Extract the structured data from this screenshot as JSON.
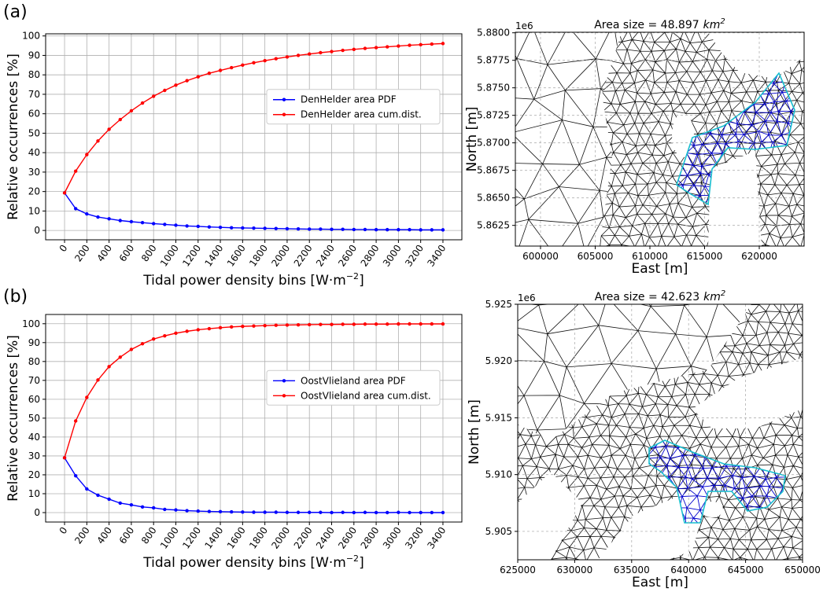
{
  "chart_data": [
    {
      "type": "line",
      "panel_label": "(a)",
      "ylabel": "Relative occurrences [%]",
      "xlabel": {
        "text": "Tidal power density bins [W·m",
        "sup": "−2",
        "end": "]"
      },
      "x": [
        0,
        100,
        200,
        300,
        400,
        500,
        600,
        700,
        800,
        900,
        1000,
        1100,
        1200,
        1300,
        1400,
        1500,
        1600,
        1700,
        1800,
        1900,
        2000,
        2100,
        2200,
        2300,
        2400,
        2500,
        2600,
        2700,
        2800,
        2900,
        3000,
        3100,
        3200,
        3300,
        3400
      ],
      "series": [
        {
          "name": "DenHelder area PDF",
          "color": "#0000ff",
          "values": [
            19.3,
            11.2,
            8.5,
            6.9,
            6.0,
            5.1,
            4.5,
            4.0,
            3.5,
            3.1,
            2.7,
            2.3,
            2.1,
            1.8,
            1.6,
            1.4,
            1.3,
            1.2,
            1.1,
            1.0,
            0.9,
            0.8,
            0.7,
            0.7,
            0.6,
            0.6,
            0.5,
            0.5,
            0.4,
            0.4,
            0.4,
            0.4,
            0.3,
            0.3,
            0.3
          ]
        },
        {
          "name": "DenHelder area cum.dist.",
          "color": "#ff0000",
          "values": [
            19.3,
            30.5,
            39.0,
            46.0,
            52.0,
            57.0,
            61.5,
            65.5,
            69.0,
            72.0,
            74.7,
            77.0,
            79.0,
            80.8,
            82.3,
            83.7,
            85.0,
            86.2,
            87.3,
            88.3,
            89.2,
            90.0,
            90.7,
            91.4,
            92.0,
            92.6,
            93.1,
            93.6,
            94.0,
            94.4,
            94.8,
            95.2,
            95.5,
            95.8,
            96.1
          ]
        }
      ],
      "xlim": [
        -170,
        3570
      ],
      "xticks": [
        0,
        200,
        400,
        600,
        800,
        1000,
        1200,
        1400,
        1600,
        1800,
        2000,
        2200,
        2400,
        2600,
        2800,
        3000,
        3200,
        3400
      ],
      "ylim": [
        -4.8,
        101.1
      ],
      "yticks": [
        0,
        10,
        20,
        30,
        40,
        50,
        60,
        70,
        80,
        90,
        100
      ],
      "grid": true,
      "legend": "center right"
    },
    {
      "type": "mesh",
      "title": "Area size = 48.897",
      "title_unit": "km",
      "title_unit_power": "2",
      "xlabel": "East [m]",
      "ylabel": "North [m]",
      "offset_text": "1e6",
      "xlim": [
        597700,
        624100
      ],
      "xticks": [
        600000,
        605000,
        610000,
        615000,
        620000
      ],
      "ylim": [
        5.86062,
        5.88005
      ],
      "yticks": [
        {
          "value": 5.8625,
          "label": "5.8625"
        },
        {
          "value": 5.865,
          "label": "5.8650"
        },
        {
          "value": 5.8675,
          "label": "5.8675"
        },
        {
          "value": 5.87,
          "label": "5.8700"
        },
        {
          "value": 5.8725,
          "label": "5.8725"
        },
        {
          "value": 5.875,
          "label": "5.8750"
        },
        {
          "value": 5.8775,
          "label": "5.8775"
        },
        {
          "value": 5.88,
          "label": "5.8800"
        }
      ],
      "grid": true
    },
    {
      "type": "line",
      "panel_label": "(b)",
      "ylabel": "Relative occurrences [%]",
      "xlabel": {
        "text": "Tidal power density bins [W·m",
        "sup": "−2",
        "end": "]"
      },
      "x": [
        0,
        100,
        200,
        300,
        400,
        500,
        600,
        700,
        800,
        900,
        1000,
        1100,
        1200,
        1300,
        1400,
        1500,
        1600,
        1700,
        1800,
        1900,
        2000,
        2100,
        2200,
        2300,
        2400,
        2500,
        2600,
        2700,
        2800,
        2900,
        3000,
        3100,
        3200,
        3300,
        3400
      ],
      "series": [
        {
          "name": "OostVlieland area PDF",
          "color": "#0000ff",
          "values": [
            29.0,
            19.5,
            12.5,
            9.2,
            7.1,
            5.0,
            4.1,
            3.0,
            2.5,
            1.7,
            1.4,
            1.0,
            0.8,
            0.6,
            0.5,
            0.4,
            0.3,
            0.2,
            0.2,
            0.2,
            0.1,
            0.1,
            0.1,
            0.1,
            0.0,
            0.1,
            0.0,
            0.1,
            0.0,
            0.0,
            0.1,
            0.0,
            0.0,
            0.0,
            0.0
          ]
        },
        {
          "name": "OostVlieland area cum.dist.",
          "color": "#ff0000",
          "values": [
            29.0,
            48.5,
            61.0,
            70.2,
            77.3,
            82.3,
            86.4,
            89.4,
            91.9,
            93.6,
            95.0,
            96.0,
            96.8,
            97.4,
            97.9,
            98.3,
            98.6,
            98.8,
            99.0,
            99.2,
            99.3,
            99.4,
            99.5,
            99.6,
            99.6,
            99.7,
            99.7,
            99.8,
            99.8,
            99.8,
            99.9,
            99.9,
            99.9,
            99.9,
            99.9
          ]
        }
      ],
      "xlim": [
        -170,
        3570
      ],
      "xticks": [
        0,
        200,
        400,
        600,
        800,
        1000,
        1200,
        1400,
        1600,
        1800,
        2000,
        2200,
        2400,
        2600,
        2800,
        3000,
        3200,
        3400
      ],
      "ylim": [
        -5,
        104.9
      ],
      "yticks": [
        0,
        10,
        20,
        30,
        40,
        50,
        60,
        70,
        80,
        90,
        100
      ],
      "grid": true,
      "legend": "center right"
    },
    {
      "type": "mesh",
      "title": "Area size = 42.623",
      "title_unit": "km",
      "title_unit_power": "2",
      "xlabel": "East [m]",
      "ylabel": "North [m]",
      "offset_text": "1e6",
      "xlim": [
        625000,
        650000
      ],
      "xticks": [
        625000,
        630000,
        635000,
        640000,
        645000,
        650000
      ],
      "ylim": [
        5.9025,
        5.925
      ],
      "yticks": [
        {
          "value": 5.905,
          "label": "5.905"
        },
        {
          "value": 5.91,
          "label": "5.910"
        },
        {
          "value": 5.915,
          "label": "5.915"
        },
        {
          "value": 5.92,
          "label": "5.920"
        },
        {
          "value": 5.925,
          "label": "5.925"
        }
      ],
      "grid": true
    }
  ]
}
